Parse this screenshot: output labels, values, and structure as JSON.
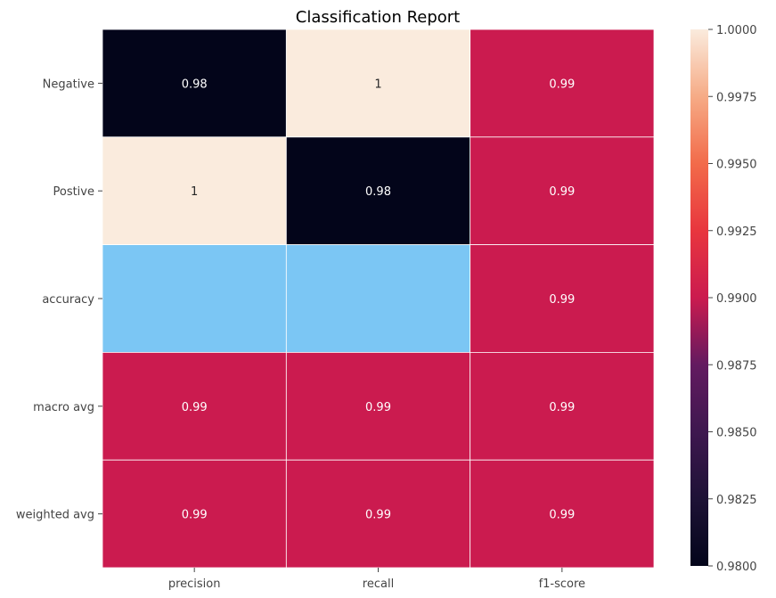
{
  "chart_data": {
    "type": "heatmap",
    "title": "Classification Report",
    "rows": [
      "Negative",
      "Postive",
      "accuracy",
      "macro avg",
      "weighted avg"
    ],
    "columns": [
      "precision",
      "recall",
      "f1-score"
    ],
    "values": [
      [
        0.98,
        1.0,
        0.99
      ],
      [
        1.0,
        0.98,
        0.99
      ],
      [
        null,
        null,
        0.99
      ],
      [
        0.99,
        0.99,
        0.99
      ],
      [
        0.99,
        0.99,
        0.99
      ]
    ],
    "annotations": [
      [
        "0.98",
        "1",
        "0.99"
      ],
      [
        "1",
        "0.98",
        "0.99"
      ],
      [
        "",
        "",
        "0.99"
      ],
      [
        "0.99",
        "0.99",
        "0.99"
      ],
      [
        "0.99",
        "0.99",
        "0.99"
      ]
    ],
    "missing_color": "#7bc6f4",
    "colormap": "rocket",
    "colorbar": {
      "vmin": 0.98,
      "vmax": 1.0,
      "ticks": [
        "0.9800",
        "0.9825",
        "0.9850",
        "0.9875",
        "0.9900",
        "0.9925",
        "0.9950",
        "0.9975",
        "1.0000"
      ],
      "tick_values": [
        0.98,
        0.9825,
        0.985,
        0.9875,
        0.99,
        0.9925,
        0.995,
        0.9975,
        1.0
      ]
    },
    "colors": {
      "low": "#03051a",
      "mid": "#cb1b4f",
      "high": "#faebdd",
      "cell_border": "#ffffff"
    }
  }
}
